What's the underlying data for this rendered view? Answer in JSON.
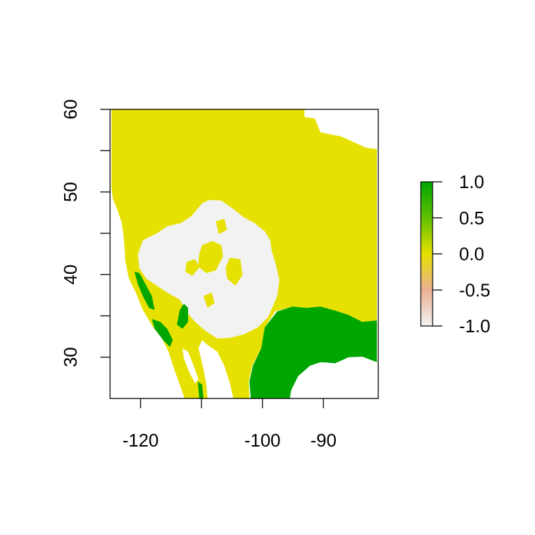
{
  "chart_data": {
    "type": "heatmap",
    "title": "",
    "xlabel": "",
    "ylabel": "",
    "xlim": [
      -125,
      -81
    ],
    "ylim": [
      25,
      60
    ],
    "x_ticks": [
      {
        "value": -120,
        "label": "-120"
      },
      {
        "value": -110,
        "label": ""
      },
      {
        "value": -100,
        "label": "-100"
      },
      {
        "value": -90,
        "label": "-90"
      }
    ],
    "y_ticks": [
      {
        "value": 30,
        "label": "30"
      },
      {
        "value": 35,
        "label": ""
      },
      {
        "value": 40,
        "label": "40"
      },
      {
        "value": 45,
        "label": ""
      },
      {
        "value": 50,
        "label": "50"
      },
      {
        "value": 55,
        "label": ""
      },
      {
        "value": 60,
        "label": "60"
      }
    ],
    "legend": {
      "placement": "right",
      "min": -1.0,
      "max": 1.0,
      "ticks": [
        {
          "value": 1.0,
          "label": "1.0"
        },
        {
          "value": 0.5,
          "label": "0.5"
        },
        {
          "value": 0.0,
          "label": "0.0"
        },
        {
          "value": -0.5,
          "label": "-0.5"
        },
        {
          "value": -1.0,
          "label": "-1.0"
        }
      ],
      "color_stops": [
        {
          "value": -1.0,
          "color": "#f2f2f2"
        },
        {
          "value": -0.5,
          "color": "#ebb094"
        },
        {
          "value": 0.0,
          "color": "#e6e100"
        },
        {
          "value": 0.5,
          "color": "#61c000"
        },
        {
          "value": 1.0,
          "color": "#00a600"
        }
      ]
    },
    "region_colors": {
      "high": "#00a600",
      "zero": "#e6e100",
      "low": "#f2f2f2"
    }
  }
}
